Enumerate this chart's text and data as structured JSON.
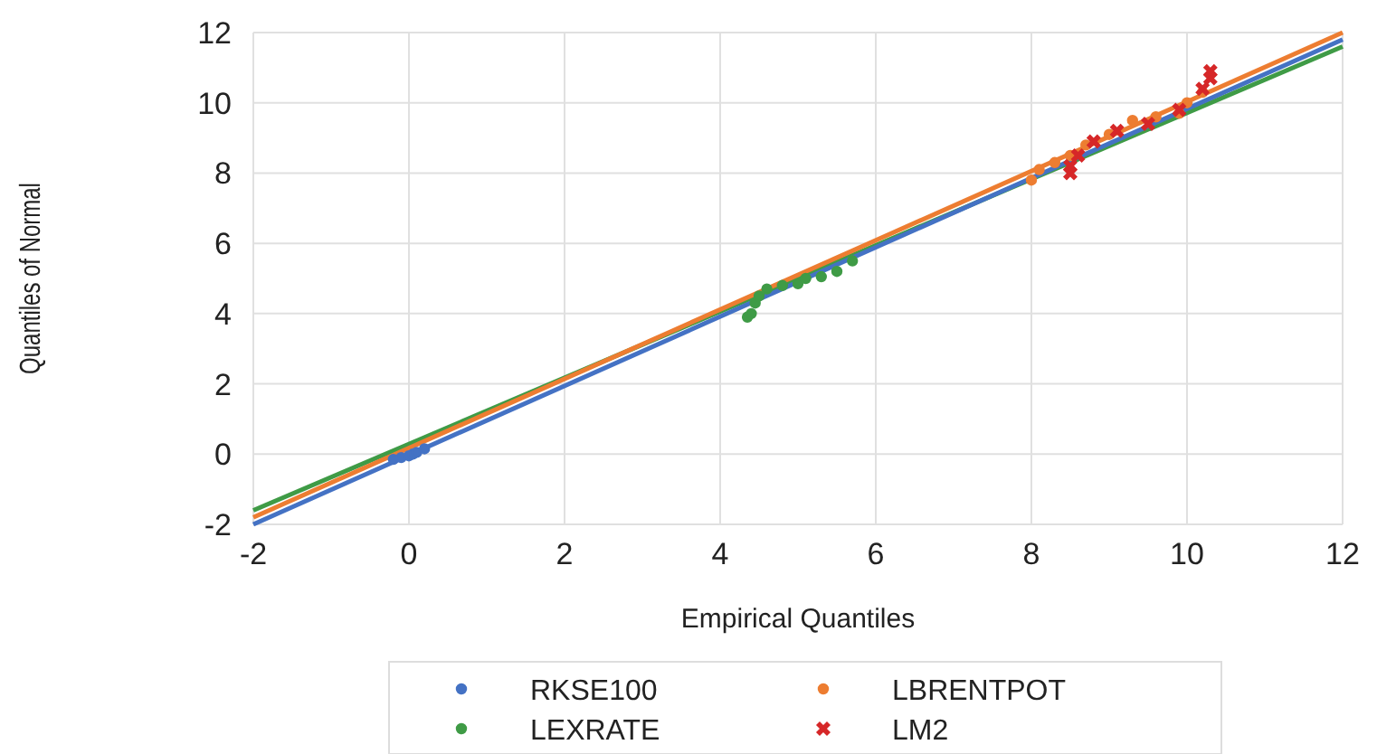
{
  "chart_data": {
    "type": "scatter",
    "xlabel": "Empirical Quantiles",
    "ylabel": "Quantiles of Normal",
    "xlim": [
      -2,
      12
    ],
    "ylim": [
      -2,
      12
    ],
    "xticks": [
      -2,
      0,
      2,
      4,
      6,
      8,
      10,
      12
    ],
    "yticks": [
      -2,
      0,
      2,
      4,
      6,
      8,
      10,
      12
    ],
    "grid": true,
    "legend": "bottom",
    "series": [
      {
        "type": "line",
        "color": "#3f9b46",
        "x": [
          -2,
          12
        ],
        "values": [
          -1.6,
          11.6
        ],
        "marker": "none"
      },
      {
        "type": "line",
        "color": "#4472c4",
        "x": [
          -2,
          12
        ],
        "values": [
          -2,
          11.8
        ],
        "marker": "none"
      },
      {
        "type": "line",
        "color": "#ed7d31",
        "x": [
          -2,
          12
        ],
        "values": [
          -1.8,
          12
        ],
        "marker": "none"
      },
      {
        "name": "RKSE100",
        "color": "#4472c4",
        "marker": "circle",
        "x": [
          -0.2,
          -0.1,
          0,
          0.05,
          0.1,
          0.2
        ],
        "values": [
          -0.15,
          -0.1,
          -0.05,
          0,
          0.05,
          0.15
        ]
      },
      {
        "name": "LBRENTPOT",
        "color": "#ed7d31",
        "marker": "circle",
        "x": [
          8,
          8.1,
          8.3,
          8.5,
          8.7,
          9,
          9.3,
          9.6,
          9.9,
          10,
          10.2
        ],
        "values": [
          7.8,
          8.1,
          8.3,
          8.5,
          8.8,
          9.1,
          9.5,
          9.6,
          9.7,
          10,
          10.3
        ]
      },
      {
        "name": "LEXRATE",
        "color": "#3f9b46",
        "marker": "circle",
        "x": [
          4.35,
          4.4,
          4.45,
          4.5,
          4.6,
          4.8,
          5,
          5.1,
          5.3,
          5.5,
          5.7
        ],
        "values": [
          3.9,
          4,
          4.3,
          4.5,
          4.7,
          4.8,
          4.85,
          5,
          5.05,
          5.2,
          5.5
        ]
      },
      {
        "name": "LM2",
        "color": "#d62728",
        "marker": "cross",
        "x": [
          8.5,
          8.5,
          8.6,
          8.8,
          9.1,
          9.5,
          9.9,
          10.2,
          10.3,
          10.3
        ],
        "values": [
          8,
          8.2,
          8.5,
          8.9,
          9.2,
          9.4,
          9.8,
          10.4,
          10.7,
          10.9
        ]
      }
    ]
  }
}
